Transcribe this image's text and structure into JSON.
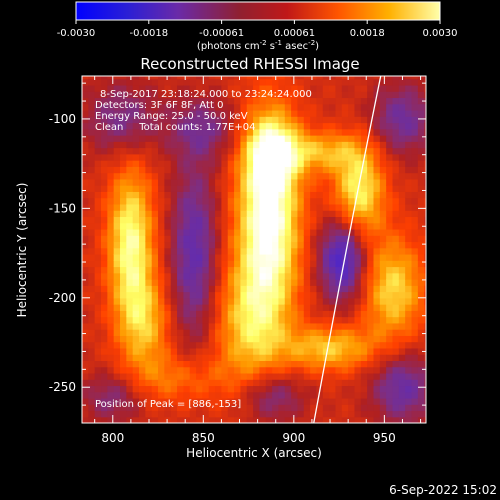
{
  "colorbar": {
    "ticks": [
      "-0.0030",
      "-0.0018",
      "-0.00061",
      "0.00061",
      "0.0018",
      "0.0030"
    ],
    "units_main": "(photons cm",
    "units_exp1": "-2",
    "units_mid": " s",
    "units_exp2": "-1",
    "units_end": " asec",
    "units_exp3": "-2",
    "units_close": ")",
    "range": [
      -0.003,
      0.003
    ]
  },
  "chart_data": {
    "type": "heatmap",
    "title": "Reconstructed RHESSI Image",
    "xlabel": "Heliocentric X (arcsec)",
    "ylabel": "Heliocentric Y (arcsec)",
    "xlim": [
      783,
      973
    ],
    "ylim": [
      -270,
      -76
    ],
    "xticks": [
      "800",
      "850",
      "900",
      "950"
    ],
    "yticks": [
      "-100",
      "-150",
      "-200",
      "-250"
    ],
    "xtick_values": [
      800,
      850,
      900,
      950
    ],
    "ytick_values": [
      -100,
      -150,
      -200,
      -250
    ],
    "colormap": [
      "#0000ff",
      "#5a2bbd",
      "#7a2f8a",
      "#b02020",
      "#ff4000",
      "#ff9a00",
      "#ffff66",
      "#ffffff"
    ],
    "sources": [
      {
        "x": 886,
        "y": -155,
        "sx": 12,
        "sy": 38,
        "amp": 1.0
      },
      {
        "x": 888,
        "y": -118,
        "sx": 10,
        "sy": 14,
        "amp": 0.55
      },
      {
        "x": 875,
        "y": -215,
        "sx": 14,
        "sy": 25,
        "amp": 0.5
      },
      {
        "x": 810,
        "y": -170,
        "sx": 9,
        "sy": 30,
        "amp": 0.78
      },
      {
        "x": 818,
        "y": -215,
        "sx": 10,
        "sy": 18,
        "amp": 0.45
      },
      {
        "x": 936,
        "y": -140,
        "sx": 10,
        "sy": 18,
        "amp": 0.7
      },
      {
        "x": 955,
        "y": -195,
        "sx": 12,
        "sy": 20,
        "amp": 0.6
      },
      {
        "x": 920,
        "y": -228,
        "sx": 18,
        "sy": 9,
        "amp": 0.55
      },
      {
        "x": 915,
        "y": -118,
        "sx": 16,
        "sy": 8,
        "amp": 0.45
      },
      {
        "x": 835,
        "y": -245,
        "sx": 20,
        "sy": 10,
        "amp": 0.3
      },
      {
        "x": 927,
        "y": -178,
        "sx": 9,
        "sy": 16,
        "amp": -0.75
      },
      {
        "x": 845,
        "y": -175,
        "sx": 9,
        "sy": 35,
        "amp": -0.55
      },
      {
        "x": 805,
        "y": -100,
        "sx": 14,
        "sy": 14,
        "amp": -0.4
      },
      {
        "x": 850,
        "y": -105,
        "sx": 14,
        "sy": 12,
        "amp": -0.35
      },
      {
        "x": 960,
        "y": -100,
        "sx": 12,
        "sy": 14,
        "amp": -0.45
      },
      {
        "x": 960,
        "y": -250,
        "sx": 12,
        "sy": 14,
        "amp": -0.5
      },
      {
        "x": 888,
        "y": -255,
        "sx": 12,
        "sy": 10,
        "amp": -0.4
      },
      {
        "x": 800,
        "y": -255,
        "sx": 12,
        "sy": 10,
        "amp": -0.35
      }
    ],
    "limb_curve": [
      [
        948,
        -76
      ],
      [
        935,
        -140
      ],
      [
        922,
        -210
      ],
      [
        911,
        -270
      ]
    ],
    "info": {
      "time_range": "8-Sep-2017 23:18:24.000 to 23:24:24.000",
      "detectors": "Detectors: 3F 6F 8F, Att 0",
      "energy": "Energy Range: 25.0 - 50.0 keV",
      "clean": "Clean     Total counts: 1.77E+04",
      "peak": "Position of Peak = [886,-153]"
    }
  },
  "footer": {
    "timestamp": "6-Sep-2022 15:02"
  }
}
